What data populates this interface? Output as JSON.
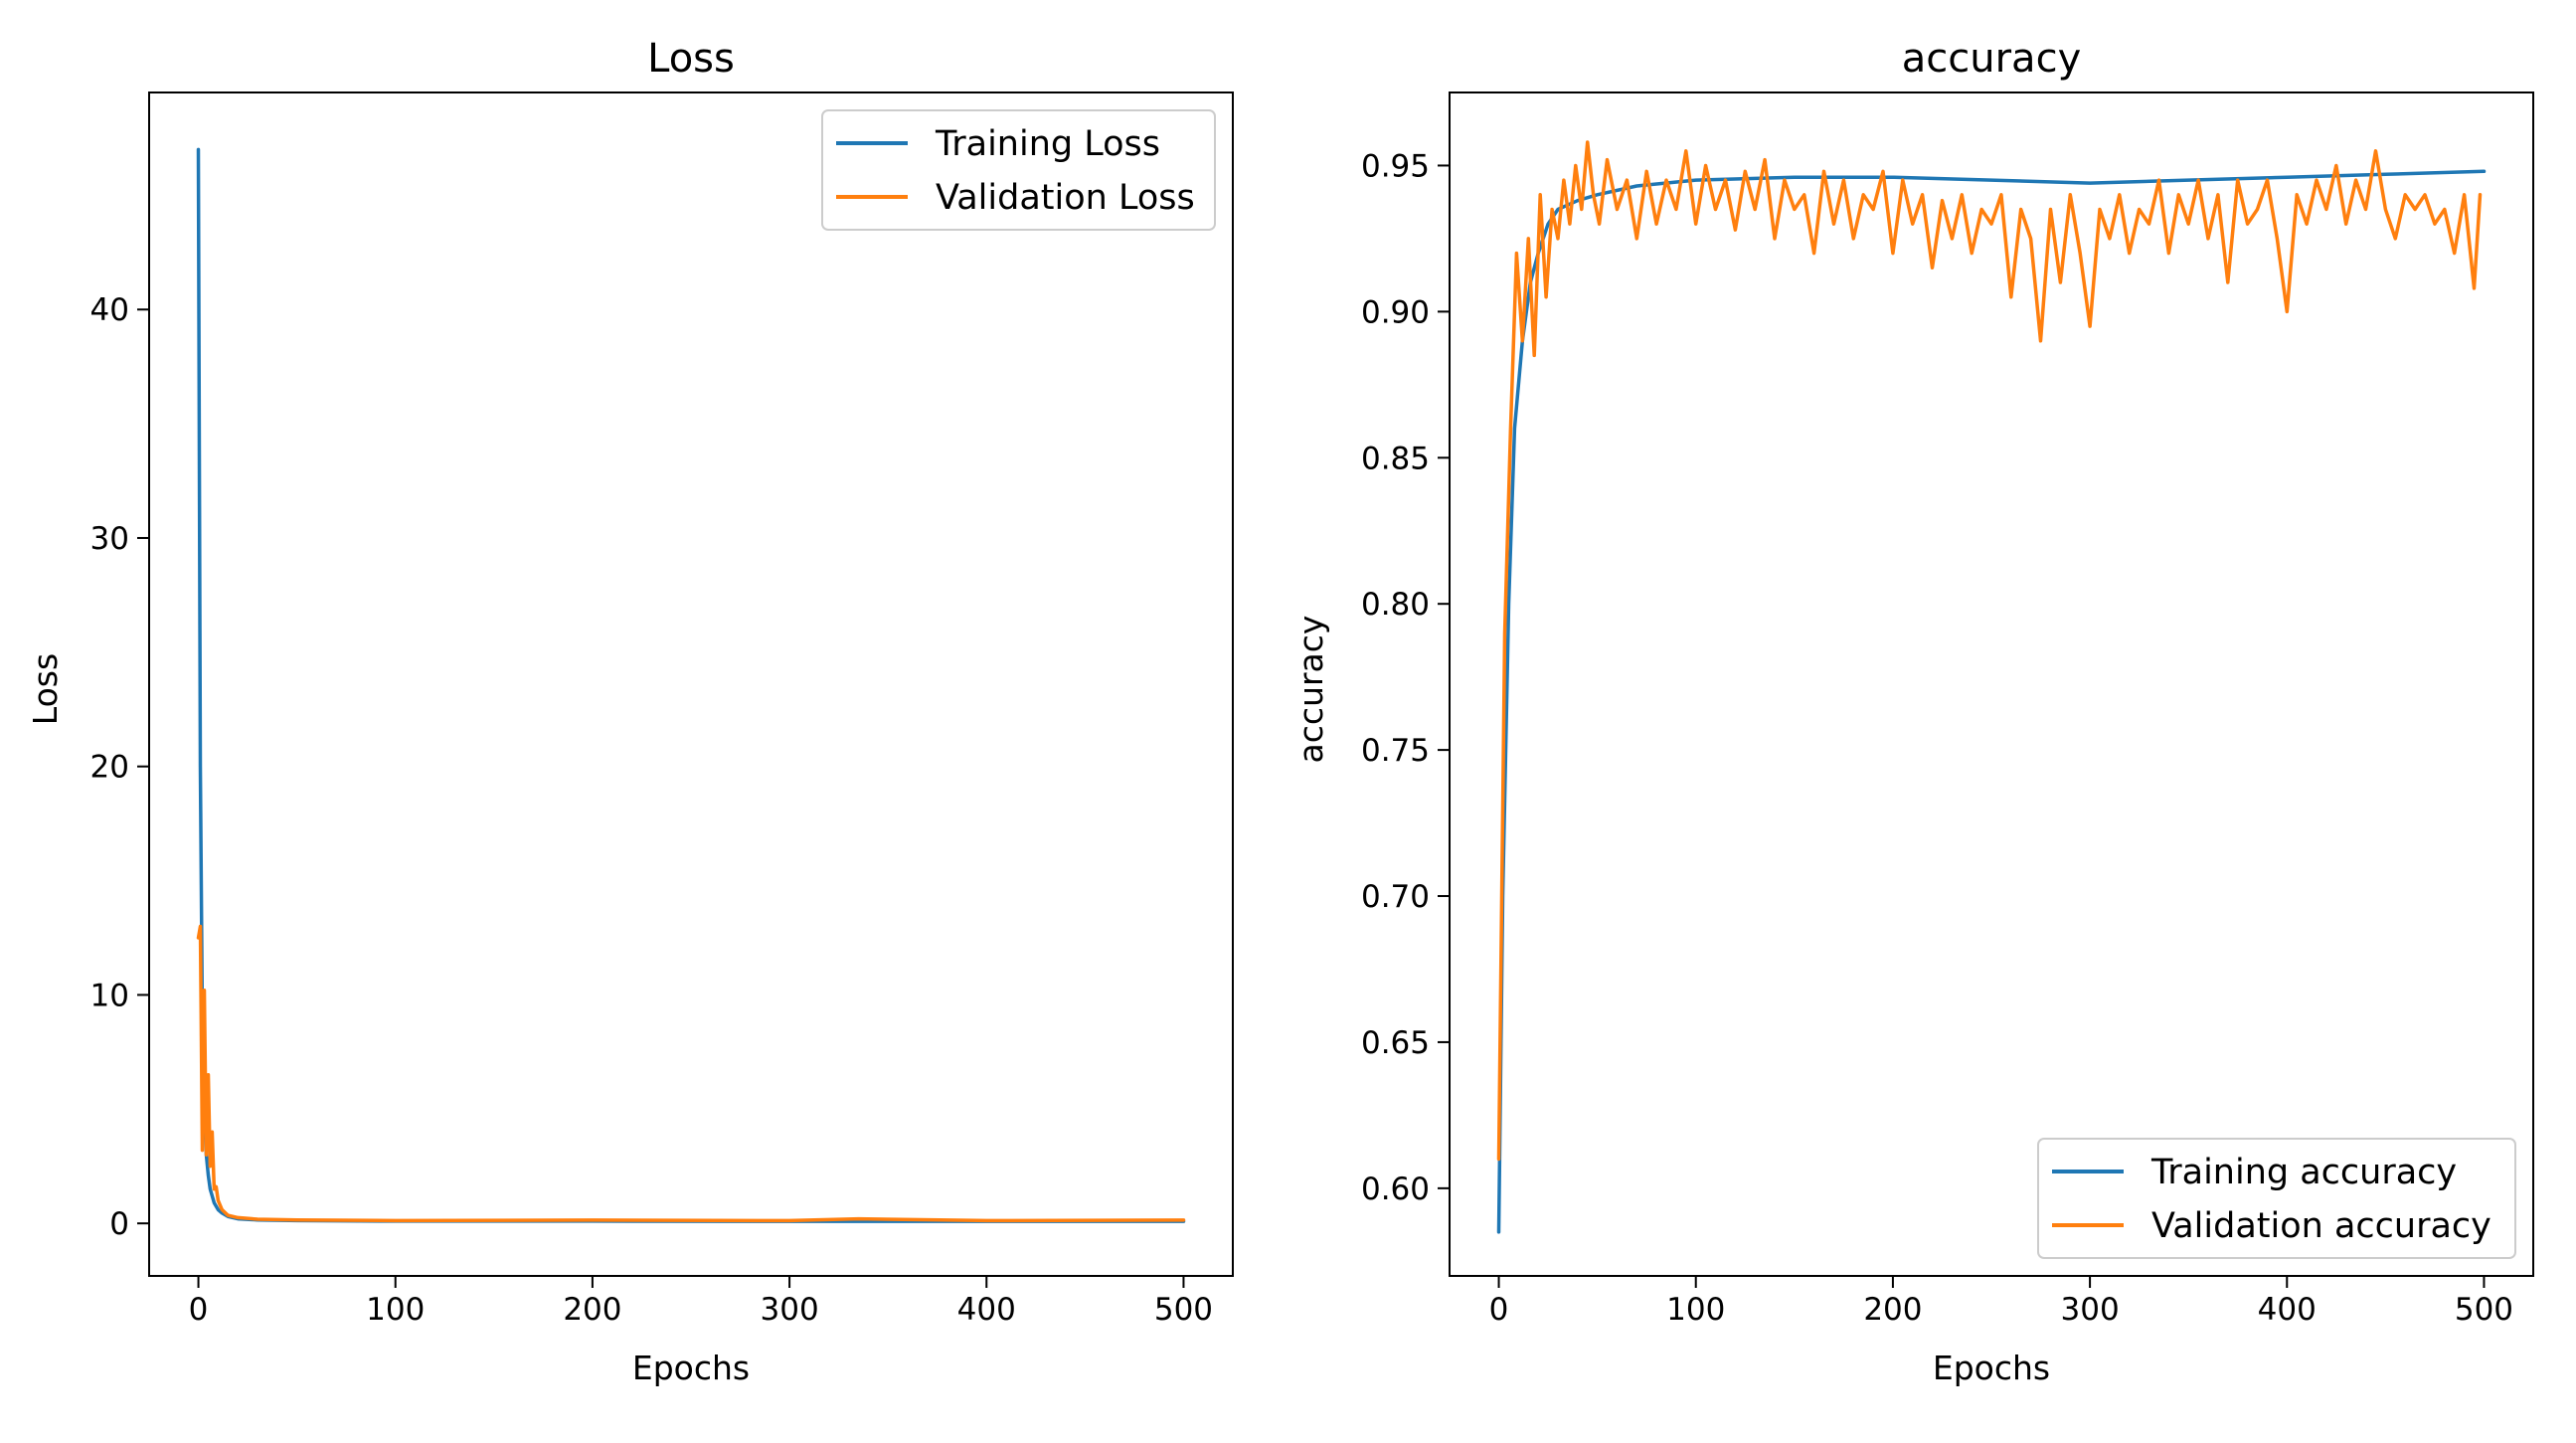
{
  "chart_data": [
    {
      "type": "line",
      "title": "Loss",
      "xlabel": "Epochs",
      "ylabel": "Loss",
      "xlim": [
        -25,
        525
      ],
      "ylim": [
        -2.3,
        49.5
      ],
      "xticks": [
        0,
        100,
        200,
        300,
        400,
        500
      ],
      "yticks": [
        0,
        10,
        20,
        30,
        40
      ],
      "grid": false,
      "legend": "top-right",
      "series": [
        {
          "name": "Training Loss",
          "color": "#1f77b4",
          "x": [
            0,
            1,
            2,
            3,
            4,
            5,
            6,
            8,
            10,
            12,
            15,
            20,
            30,
            50,
            100,
            200,
            300,
            400,
            500
          ],
          "y": [
            47,
            20,
            9,
            5,
            3,
            2.1,
            1.5,
            0.9,
            0.6,
            0.45,
            0.3,
            0.2,
            0.15,
            0.12,
            0.1,
            0.1,
            0.09,
            0.09,
            0.09
          ]
        },
        {
          "name": "Validation Loss",
          "color": "#ff7f0e",
          "x": [
            0,
            1,
            2,
            3,
            4,
            5,
            6,
            7,
            8,
            9,
            10,
            12,
            15,
            20,
            30,
            50,
            100,
            200,
            300,
            335,
            400,
            500
          ],
          "y": [
            12.5,
            13,
            3.2,
            10.2,
            3.0,
            6.5,
            2.5,
            4.0,
            1.5,
            1.6,
            1.0,
            0.6,
            0.35,
            0.25,
            0.18,
            0.15,
            0.12,
            0.14,
            0.12,
            0.2,
            0.12,
            0.14
          ]
        }
      ]
    },
    {
      "type": "line",
      "title": "accuracy",
      "xlabel": "Epochs",
      "ylabel": "accuracy",
      "xlim": [
        -25,
        525
      ],
      "ylim": [
        0.57,
        0.975
      ],
      "xticks": [
        0,
        100,
        200,
        300,
        400,
        500
      ],
      "yticks": [
        0.6,
        0.65,
        0.7,
        0.75,
        0.8,
        0.85,
        0.9,
        0.95
      ],
      "grid": false,
      "legend": "bottom-right",
      "series": [
        {
          "name": "Training accuracy",
          "color": "#1f77b4",
          "x": [
            0,
            2,
            5,
            8,
            12,
            16,
            20,
            25,
            30,
            40,
            50,
            70,
            100,
            150,
            200,
            250,
            300,
            350,
            400,
            450,
            500
          ],
          "y": [
            0.585,
            0.7,
            0.8,
            0.86,
            0.89,
            0.91,
            0.92,
            0.93,
            0.935,
            0.938,
            0.94,
            0.943,
            0.945,
            0.946,
            0.946,
            0.945,
            0.944,
            0.945,
            0.946,
            0.947,
            0.948
          ]
        },
        {
          "name": "Validation accuracy",
          "color": "#ff7f0e",
          "x": [
            0,
            3,
            6,
            9,
            12,
            15,
            18,
            21,
            24,
            27,
            30,
            33,
            36,
            39,
            42,
            45,
            48,
            51,
            55,
            60,
            65,
            70,
            75,
            80,
            85,
            90,
            95,
            100,
            105,
            110,
            115,
            120,
            125,
            130,
            135,
            140,
            145,
            150,
            155,
            160,
            165,
            170,
            175,
            180,
            185,
            190,
            195,
            200,
            205,
            210,
            215,
            220,
            225,
            230,
            235,
            240,
            245,
            250,
            255,
            260,
            265,
            270,
            275,
            280,
            285,
            290,
            295,
            300,
            305,
            310,
            315,
            320,
            325,
            330,
            335,
            340,
            345,
            350,
            355,
            360,
            365,
            370,
            375,
            380,
            385,
            390,
            395,
            400,
            405,
            410,
            415,
            420,
            425,
            430,
            435,
            440,
            445,
            450,
            455,
            460,
            465,
            470,
            475,
            480,
            485,
            490,
            495,
            498
          ],
          "y": [
            0.61,
            0.79,
            0.86,
            0.92,
            0.89,
            0.925,
            0.885,
            0.94,
            0.905,
            0.935,
            0.925,
            0.945,
            0.93,
            0.95,
            0.935,
            0.958,
            0.94,
            0.93,
            0.952,
            0.935,
            0.945,
            0.925,
            0.948,
            0.93,
            0.945,
            0.935,
            0.955,
            0.93,
            0.95,
            0.935,
            0.945,
            0.928,
            0.948,
            0.935,
            0.952,
            0.925,
            0.945,
            0.935,
            0.94,
            0.92,
            0.948,
            0.93,
            0.945,
            0.925,
            0.94,
            0.935,
            0.948,
            0.92,
            0.945,
            0.93,
            0.94,
            0.915,
            0.938,
            0.925,
            0.94,
            0.92,
            0.935,
            0.93,
            0.94,
            0.905,
            0.935,
            0.925,
            0.89,
            0.935,
            0.91,
            0.94,
            0.92,
            0.895,
            0.935,
            0.925,
            0.94,
            0.92,
            0.935,
            0.93,
            0.945,
            0.92,
            0.94,
            0.93,
            0.945,
            0.925,
            0.94,
            0.91,
            0.945,
            0.93,
            0.935,
            0.945,
            0.925,
            0.9,
            0.94,
            0.93,
            0.945,
            0.935,
            0.95,
            0.93,
            0.945,
            0.935,
            0.955,
            0.935,
            0.925,
            0.94,
            0.935,
            0.94,
            0.93,
            0.935,
            0.92,
            0.94,
            0.908,
            0.94
          ]
        }
      ]
    }
  ]
}
